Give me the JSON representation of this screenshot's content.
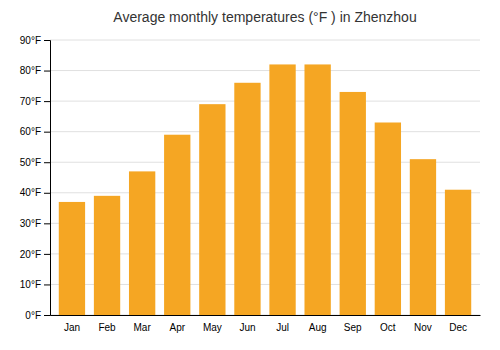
{
  "chart_data": {
    "type": "bar",
    "title": "Average monthly temperatures (°F ) in Zhenzhou",
    "categories": [
      "Jan",
      "Feb",
      "Mar",
      "Apr",
      "May",
      "Jun",
      "Jul",
      "Aug",
      "Sep",
      "Oct",
      "Nov",
      "Dec"
    ],
    "values": [
      37,
      39,
      47,
      59,
      69,
      76,
      82,
      82,
      73,
      63,
      51,
      41
    ],
    "color": "#F5A623",
    "ylim": [
      0,
      90
    ],
    "yticks": [
      {
        "value": 0,
        "label": "0°F"
      },
      {
        "value": 10,
        "label": "10°F"
      },
      {
        "value": 20,
        "label": "20°F"
      },
      {
        "value": 30,
        "label": "30°F"
      },
      {
        "value": 40,
        "label": "40°F"
      },
      {
        "value": 50,
        "label": "50°F"
      },
      {
        "value": 60,
        "label": "60°F"
      },
      {
        "value": 70,
        "label": "70°F"
      },
      {
        "value": 80,
        "label": "80°F"
      },
      {
        "value": 90,
        "label": "90°F"
      }
    ],
    "grid": true
  }
}
